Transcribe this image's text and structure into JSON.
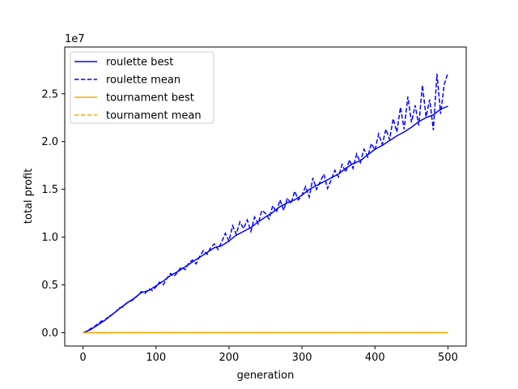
{
  "chart_data": {
    "type": "line",
    "xlabel": "generation",
    "ylabel": "total profit",
    "offset_text": "1e7",
    "xlim": [
      -25,
      525
    ],
    "ylim": [
      -1.4,
      29.9
    ],
    "y_scale_label": "values in units of 1e7 shown as tick numbers",
    "x_ticks": [
      0,
      100,
      200,
      300,
      400,
      500
    ],
    "x_tick_labels": [
      "0",
      "100",
      "200",
      "300",
      "400",
      "500"
    ],
    "y_ticks": [
      0,
      5,
      10,
      15,
      20,
      25
    ],
    "y_tick_labels": [
      "0.0",
      "0.5",
      "1.0",
      "1.5",
      "2.0",
      "2.5"
    ],
    "grid": false,
    "legend_position": "upper-left",
    "series": [
      {
        "name": "roulette best",
        "color": "#0000ff",
        "dash": "solid",
        "x": [
          0,
          10,
          20,
          30,
          40,
          50,
          60,
          70,
          80,
          90,
          100,
          110,
          120,
          130,
          140,
          150,
          160,
          170,
          180,
          190,
          200,
          210,
          220,
          230,
          240,
          250,
          260,
          270,
          280,
          290,
          300,
          310,
          320,
          330,
          340,
          350,
          360,
          370,
          380,
          390,
          400,
          410,
          420,
          430,
          440,
          450,
          460,
          470,
          480,
          490,
          500
        ],
        "values": [
          0.0,
          0.3,
          0.8,
          1.3,
          1.9,
          2.5,
          3.1,
          3.6,
          4.2,
          4.4,
          4.9,
          5.4,
          6.0,
          6.4,
          6.9,
          7.4,
          7.9,
          8.4,
          8.9,
          9.1,
          9.6,
          10.2,
          10.6,
          11.0,
          11.6,
          12.1,
          12.6,
          13.2,
          13.6,
          13.9,
          14.4,
          15.0,
          15.4,
          15.8,
          16.2,
          16.6,
          17.2,
          17.7,
          18.0,
          18.6,
          19.2,
          19.6,
          20.1,
          20.6,
          21.0,
          21.5,
          22.1,
          22.5,
          22.8,
          23.4,
          23.7
        ]
      },
      {
        "name": "roulette mean",
        "color": "#0000ff",
        "dash": "dashed",
        "x": [
          0,
          5,
          10,
          15,
          20,
          25,
          30,
          35,
          40,
          45,
          50,
          55,
          60,
          65,
          70,
          75,
          80,
          85,
          90,
          95,
          100,
          105,
          110,
          115,
          120,
          125,
          130,
          135,
          140,
          145,
          150,
          155,
          160,
          165,
          170,
          175,
          180,
          185,
          190,
          195,
          200,
          205,
          210,
          215,
          220,
          225,
          230,
          235,
          240,
          245,
          250,
          255,
          260,
          265,
          270,
          275,
          280,
          285,
          290,
          295,
          300,
          305,
          310,
          315,
          320,
          325,
          330,
          335,
          340,
          345,
          350,
          355,
          360,
          365,
          370,
          375,
          380,
          385,
          390,
          395,
          400,
          405,
          410,
          415,
          420,
          425,
          430,
          435,
          440,
          445,
          450,
          455,
          460,
          465,
          470,
          475,
          480,
          485,
          490,
          495,
          500
        ],
        "values": [
          0.0,
          0.1,
          0.4,
          0.6,
          0.9,
          1.2,
          1.3,
          1.7,
          1.9,
          2.2,
          2.6,
          2.7,
          3.1,
          3.3,
          3.5,
          3.9,
          4.3,
          4.1,
          4.6,
          4.4,
          4.8,
          5.3,
          5.0,
          5.7,
          6.2,
          5.9,
          6.4,
          6.9,
          6.6,
          7.3,
          7.6,
          7.2,
          8.0,
          8.6,
          8.2,
          8.9,
          9.3,
          8.7,
          9.5,
          10.4,
          9.6,
          11.2,
          10.3,
          11.6,
          10.9,
          11.8,
          10.6,
          12.1,
          11.4,
          12.8,
          12.5,
          11.9,
          13.3,
          12.6,
          13.9,
          12.8,
          14.1,
          13.5,
          14.8,
          13.9,
          14.4,
          15.3,
          14.2,
          16.2,
          15.0,
          15.8,
          16.6,
          15.1,
          16.0,
          17.0,
          16.3,
          17.6,
          16.8,
          18.1,
          17.2,
          18.7,
          17.8,
          19.2,
          18.4,
          19.8,
          19.1,
          20.8,
          19.7,
          21.3,
          20.2,
          22.4,
          21.0,
          23.6,
          21.3,
          24.7,
          22.0,
          23.8,
          21.7,
          25.9,
          22.6,
          24.4,
          21.2,
          27.1,
          22.9,
          26.0,
          27.2
        ]
      },
      {
        "name": "tournament best",
        "color": "#ffa500",
        "dash": "solid",
        "x": [
          0,
          500
        ],
        "values": [
          0.0,
          0.0
        ]
      },
      {
        "name": "tournament mean",
        "color": "#ffa500",
        "dash": "dashed",
        "x": [
          0,
          500
        ],
        "values": [
          0.0,
          0.0
        ]
      }
    ]
  }
}
